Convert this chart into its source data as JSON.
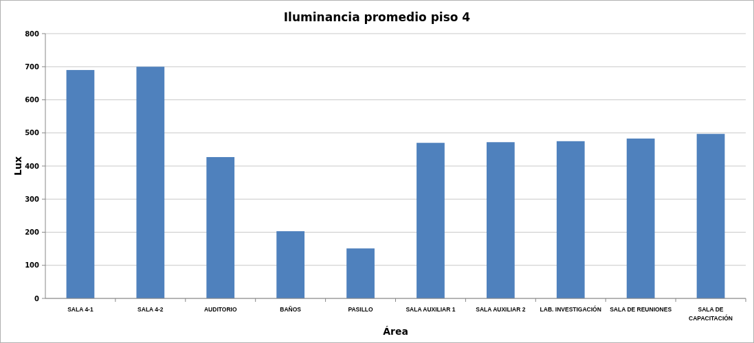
{
  "chart_data": {
    "type": "bar",
    "title": "Iluminancia promedio piso 4",
    "xlabel": "Área",
    "ylabel": "Lux",
    "categories": [
      "SALA 4-1",
      "SALA 4-2",
      "AUDITORIO",
      "BAÑOS",
      "PASILLO",
      "SALA AUXILIAR 1",
      "SALA AUXILIAR 2",
      "LAB. INVESTIGACIÓN",
      "SALA DE REUNIONES",
      "SALA DE CAPACITACIÓN"
    ],
    "values": [
      690,
      700,
      427,
      203,
      151,
      470,
      472,
      475,
      483,
      497
    ],
    "color": "#4f81bd",
    "ylim": [
      0,
      800
    ],
    "yticks": [
      0,
      100,
      200,
      300,
      400,
      500,
      600,
      700,
      800
    ],
    "grid": "y"
  }
}
